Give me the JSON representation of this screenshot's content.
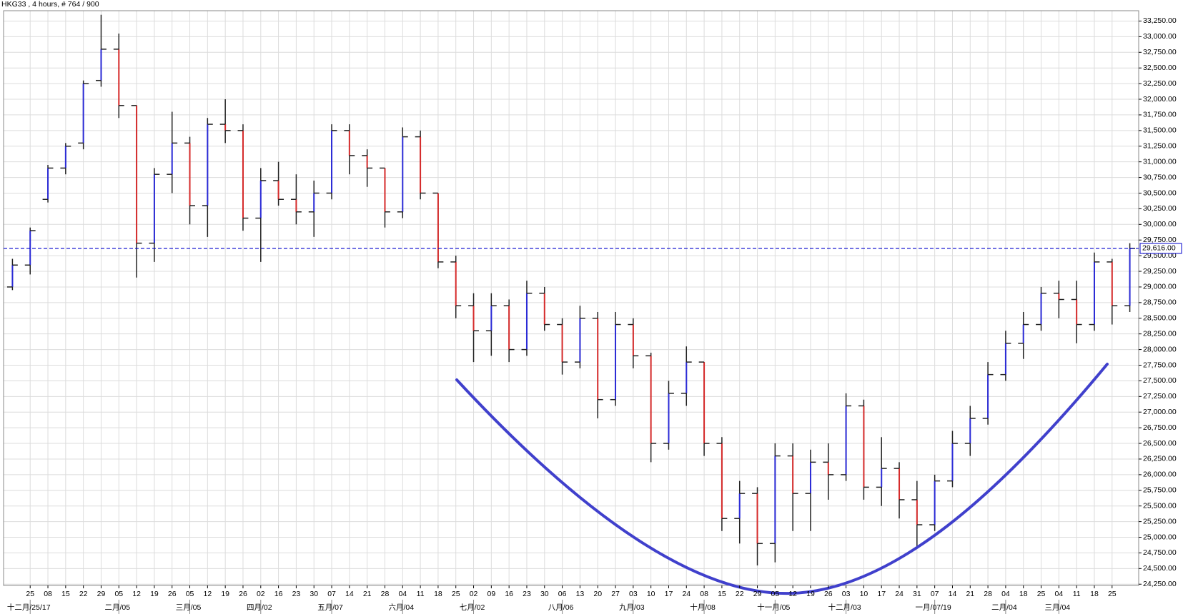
{
  "chart_data": {
    "type": "ohlc",
    "title": "HKG33 , 4 hours, # 764 / 900",
    "categories": [
      null,
      "25",
      "08",
      "15",
      "22",
      "29",
      "05",
      "12",
      "19",
      "26",
      "05",
      "12",
      "19",
      "26",
      "02",
      "16",
      "23",
      "30",
      "07",
      "14",
      "21",
      "28",
      "04",
      "11",
      "18",
      "25",
      "02",
      "09",
      "16",
      "23",
      "30",
      "06",
      "13",
      "20",
      "27",
      "03",
      "10",
      "17",
      "24",
      "08",
      "15",
      "22",
      "29",
      "05",
      "12",
      "19",
      "26",
      "03",
      "10",
      "17",
      "24",
      "31",
      "07",
      "14",
      "21",
      "28",
      "04",
      "18",
      "25",
      "04",
      "11",
      "18",
      "25",
      null
    ],
    "month_labels": [
      {
        "at": 1,
        "label": "十二月/25/17"
      },
      {
        "at": 6,
        "label": "二月/05"
      },
      {
        "at": 10,
        "label": "三月/05"
      },
      {
        "at": 14,
        "label": "四月/02"
      },
      {
        "at": 18,
        "label": "五月/07"
      },
      {
        "at": 22,
        "label": "六月/04"
      },
      {
        "at": 26,
        "label": "七月/02"
      },
      {
        "at": 31,
        "label": "八月/06"
      },
      {
        "at": 35,
        "label": "九月/03"
      },
      {
        "at": 39,
        "label": "十月/08"
      },
      {
        "at": 43,
        "label": "十一月/05"
      },
      {
        "at": 47,
        "label": "十二月/03"
      },
      {
        "at": 52,
        "label": "一月/07/19"
      },
      {
        "at": 56,
        "label": "二月/04"
      },
      {
        "at": 59,
        "label": "三月/04"
      }
    ],
    "open": [
      29000,
      29350,
      30400,
      30900,
      31300,
      32300,
      32800,
      31900,
      29700,
      30800,
      31300,
      30300,
      31600,
      31500,
      30100,
      30700,
      30400,
      30200,
      30500,
      31500,
      31100,
      30900,
      30200,
      31400,
      30500,
      29400,
      28700,
      28300,
      28700,
      28000,
      28900,
      28400,
      27800,
      28500,
      27200,
      28400,
      27900,
      26500,
      27300,
      27800,
      26500,
      25300,
      25700,
      24900,
      26300,
      25700,
      26200,
      26000,
      27100,
      25800,
      26100,
      25600,
      25200,
      25900,
      26500,
      26900,
      27600,
      28100,
      28400,
      28900,
      28800,
      28400,
      29400,
      28700
    ],
    "high": [
      29450,
      29950,
      30950,
      31300,
      32300,
      33350,
      33050,
      31900,
      30900,
      31800,
      31400,
      31700,
      32000,
      31600,
      30900,
      31000,
      30800,
      30700,
      31600,
      31600,
      31200,
      30900,
      31550,
      31500,
      30500,
      29500,
      28900,
      28900,
      28800,
      29100,
      29000,
      28500,
      28700,
      28600,
      28600,
      28500,
      27950,
      27500,
      28050,
      27800,
      26600,
      25900,
      25800,
      26500,
      26500,
      26400,
      26500,
      27300,
      27200,
      26600,
      26200,
      25900,
      26000,
      26700,
      27100,
      27800,
      28300,
      28600,
      29000,
      29100,
      29100,
      29550,
      29450,
      29700
    ],
    "low": [
      28950,
      29200,
      30350,
      30800,
      31200,
      32200,
      31700,
      29150,
      29400,
      30500,
      30000,
      29800,
      31300,
      29900,
      29400,
      30300,
      30000,
      29800,
      30400,
      30800,
      30600,
      29950,
      30100,
      30400,
      29300,
      28500,
      27800,
      27900,
      27800,
      27900,
      28300,
      27600,
      27700,
      26900,
      27100,
      27700,
      26200,
      26400,
      27100,
      26300,
      25100,
      24900,
      24550,
      24600,
      25100,
      25100,
      25600,
      25900,
      25600,
      25500,
      25300,
      24850,
      25100,
      25800,
      26300,
      26800,
      27500,
      27850,
      28300,
      28500,
      28100,
      28300,
      28400,
      28600
    ],
    "close": [
      29350,
      29900,
      30900,
      31250,
      32250,
      32800,
      31900,
      29700,
      30800,
      31300,
      30300,
      31600,
      31500,
      30100,
      30700,
      30400,
      30200,
      30500,
      31500,
      31100,
      30900,
      30200,
      31400,
      30500,
      29400,
      28700,
      28300,
      28700,
      28000,
      28900,
      28400,
      27800,
      28500,
      27200,
      28400,
      27900,
      26500,
      27300,
      27800,
      26500,
      25300,
      25700,
      24900,
      26300,
      25700,
      26200,
      26000,
      27100,
      25800,
      26100,
      25600,
      25200,
      25900,
      26500,
      26900,
      27600,
      28100,
      28400,
      28900,
      28800,
      28400,
      29400,
      28700,
      29616
    ],
    "up_color": "#2b2bd6",
    "down_color": "#d62b2b",
    "bar_color": "#222222",
    "ylim": [
      24230,
      33415
    ],
    "yticks": [
      {
        "value": 24250,
        "label": "24,250.00"
      },
      {
        "value": 24500,
        "label": "24,500.00"
      },
      {
        "value": 24750,
        "label": "24,750.00"
      },
      {
        "value": 25000,
        "label": "25,000.00"
      },
      {
        "value": 25250,
        "label": "25,250.00"
      },
      {
        "value": 25500,
        "label": "25,500.00"
      },
      {
        "value": 25750,
        "label": "25,750.00"
      },
      {
        "value": 26000,
        "label": "26,000.00"
      },
      {
        "value": 26250,
        "label": "26,250.00"
      },
      {
        "value": 26500,
        "label": "26,500.00"
      },
      {
        "value": 26750,
        "label": "26,750.00"
      },
      {
        "value": 27000,
        "label": "27,000.00"
      },
      {
        "value": 27250,
        "label": "27,250.00"
      },
      {
        "value": 27500,
        "label": "27,500.00"
      },
      {
        "value": 27750,
        "label": "27,750.00"
      },
      {
        "value": 28000,
        "label": "28,000.00"
      },
      {
        "value": 28250,
        "label": "28,250.00"
      },
      {
        "value": 28500,
        "label": "28,500.00"
      },
      {
        "value": 28750,
        "label": "28,750.00"
      },
      {
        "value": 29000,
        "label": "29,000.00"
      },
      {
        "value": 29250,
        "label": "29,250.00"
      },
      {
        "value": 29500,
        "label": "29,500.00"
      },
      {
        "value": 29750,
        "label": "29,750.00"
      },
      {
        "value": 30000,
        "label": "30,000.00"
      },
      {
        "value": 30250,
        "label": "30,250.00"
      },
      {
        "value": 30500,
        "label": "30,500.00"
      },
      {
        "value": 30750,
        "label": "30,750.00"
      },
      {
        "value": 31000,
        "label": "31,000.00"
      },
      {
        "value": 31250,
        "label": "31,250.00"
      },
      {
        "value": 31500,
        "label": "31,500.00"
      },
      {
        "value": 31750,
        "label": "31,750.00"
      },
      {
        "value": 32000,
        "label": "32,000.00"
      },
      {
        "value": 32250,
        "label": "32,250.00"
      },
      {
        "value": 32500,
        "label": "32,500.00"
      },
      {
        "value": 32750,
        "label": "32,750.00"
      },
      {
        "value": 33000,
        "label": "33,000.00"
      },
      {
        "value": 33250,
        "label": "33,250.00"
      }
    ],
    "price_line": {
      "value": 29616,
      "label": "29,616.00",
      "color": "#0000cc"
    },
    "grid": true
  }
}
